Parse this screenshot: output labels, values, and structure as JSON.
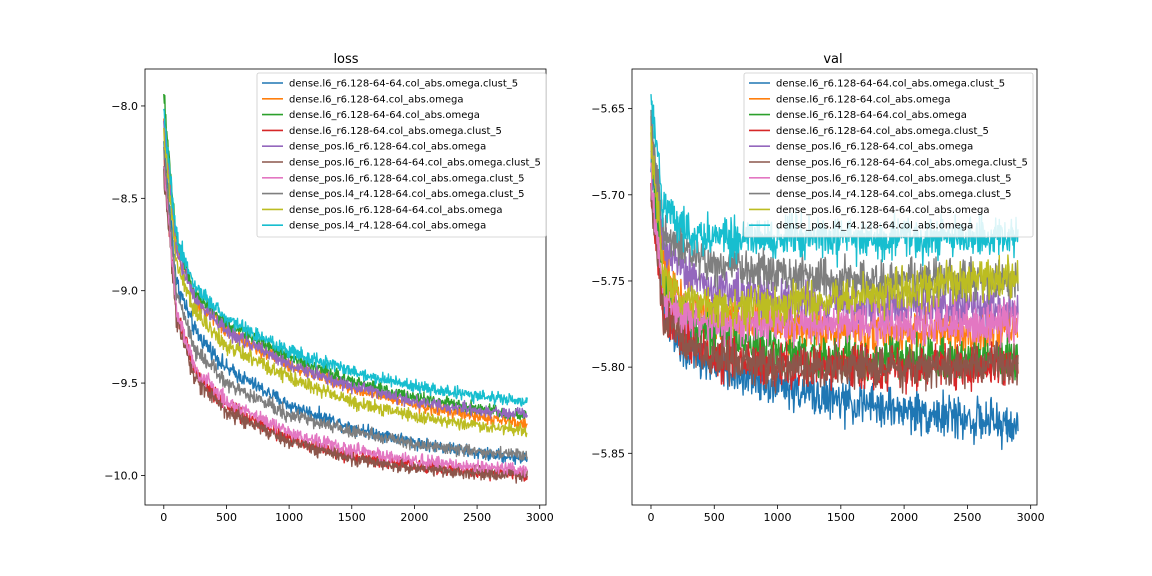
{
  "chart_data": [
    {
      "type": "line",
      "title": "loss",
      "xlabel": "",
      "ylabel": "",
      "xlim": [
        -150,
        3050
      ],
      "ylim": [
        -10.16,
        -7.8
      ],
      "xticks": [
        0,
        500,
        1000,
        1500,
        2000,
        2500,
        3000
      ],
      "xtick_labels": [
        "0",
        "500",
        "1000",
        "1500",
        "2000",
        "2500",
        "3000"
      ],
      "yticks": [
        -8.0,
        -8.5,
        -9.0,
        -9.5,
        -10.0
      ],
      "ytick_labels": [
        "−8.0",
        "−8.5",
        "−9.0",
        "−9.5",
        "−10.0"
      ],
      "grid": false,
      "legend": "top-right",
      "series": [
        {
          "name": "dense.l6_r6.128-64-64.col_abs.omega.clust_5",
          "color": "#1f77b4",
          "x": [
            0,
            100,
            250,
            500,
            1000,
            1500,
            2000,
            2500,
            2900
          ],
          "y": [
            -8.2,
            -8.95,
            -9.22,
            -9.42,
            -9.62,
            -9.74,
            -9.82,
            -9.88,
            -9.91
          ]
        },
        {
          "name": "dense.l6_r6.128-64.col_abs.omega",
          "color": "#ff7f0e",
          "x": [
            0,
            100,
            250,
            500,
            1000,
            1500,
            2000,
            2500,
            2900
          ],
          "y": [
            -8.08,
            -8.75,
            -9.05,
            -9.22,
            -9.4,
            -9.53,
            -9.62,
            -9.68,
            -9.72
          ]
        },
        {
          "name": "dense.l6_r6.128-64-64.col_abs.omega",
          "color": "#2ca02c",
          "x": [
            0,
            100,
            250,
            500,
            1000,
            1500,
            2000,
            2500,
            2900
          ],
          "y": [
            -7.95,
            -8.72,
            -9.02,
            -9.18,
            -9.36,
            -9.49,
            -9.58,
            -9.64,
            -9.68
          ]
        },
        {
          "name": "dense.l6_r6.128-64.col_abs.omega.clust_5",
          "color": "#d62728",
          "x": [
            0,
            100,
            250,
            500,
            1000,
            1500,
            2000,
            2500,
            2900
          ],
          "y": [
            -8.3,
            -9.1,
            -9.45,
            -9.63,
            -9.8,
            -9.9,
            -9.95,
            -9.98,
            -10.0
          ]
        },
        {
          "name": "dense_pos.l6_r6.128-64.col_abs.omega",
          "color": "#9467bd",
          "x": [
            0,
            100,
            250,
            500,
            1000,
            1500,
            2000,
            2500,
            2900
          ],
          "y": [
            -8.1,
            -8.8,
            -9.05,
            -9.22,
            -9.4,
            -9.52,
            -9.6,
            -9.65,
            -9.67
          ]
        },
        {
          "name": "dense_pos.l6_r6.128-64-64.col_abs.omega.clust_5",
          "color": "#8c564b",
          "x": [
            0,
            100,
            250,
            500,
            1000,
            1500,
            2000,
            2500,
            2900
          ],
          "y": [
            -8.35,
            -9.15,
            -9.48,
            -9.65,
            -9.82,
            -9.91,
            -9.96,
            -9.99,
            -10.0
          ]
        },
        {
          "name": "dense_pos.l6_r6.128-64.col_abs.omega.clust_5",
          "color": "#e377c2",
          "x": [
            0,
            100,
            250,
            500,
            1000,
            1500,
            2000,
            2500,
            2900
          ],
          "y": [
            -8.3,
            -9.1,
            -9.42,
            -9.6,
            -9.77,
            -9.86,
            -9.92,
            -9.95,
            -9.97
          ]
        },
        {
          "name": "dense_pos.l4_r4.128-64.col_abs.omega.clust_5",
          "color": "#7f7f7f",
          "x": [
            0,
            100,
            250,
            500,
            1000,
            1500,
            2000,
            2500,
            2900
          ],
          "y": [
            -8.25,
            -9.0,
            -9.32,
            -9.5,
            -9.67,
            -9.76,
            -9.83,
            -9.87,
            -9.89
          ]
        },
        {
          "name": "dense_pos.l6_r6.128-64-64.col_abs.omega",
          "color": "#bcbd22",
          "x": [
            0,
            100,
            250,
            500,
            1000,
            1500,
            2000,
            2500,
            2900
          ],
          "y": [
            -8.15,
            -8.85,
            -9.12,
            -9.3,
            -9.47,
            -9.6,
            -9.68,
            -9.73,
            -9.76
          ]
        },
        {
          "name": "dense_pos.l4_r4.128-64.col_abs.omega",
          "color": "#17becf",
          "x": [
            0,
            100,
            250,
            500,
            1000,
            1500,
            2000,
            2500,
            2900
          ],
          "y": [
            -8.05,
            -8.7,
            -8.98,
            -9.15,
            -9.33,
            -9.44,
            -9.52,
            -9.57,
            -9.6
          ]
        }
      ]
    },
    {
      "type": "line",
      "title": "val",
      "xlabel": "",
      "ylabel": "",
      "xlim": [
        -150,
        3050
      ],
      "ylim": [
        -5.88,
        -5.627
      ],
      "xticks": [
        0,
        500,
        1000,
        1500,
        2000,
        2500,
        3000
      ],
      "xtick_labels": [
        "0",
        "500",
        "1000",
        "1500",
        "2000",
        "2500",
        "3000"
      ],
      "yticks": [
        -5.65,
        -5.7,
        -5.75,
        -5.8,
        -5.85
      ],
      "ytick_labels": [
        "−5.65",
        "−5.70",
        "−5.75",
        "−5.80",
        "−5.85"
      ],
      "grid": false,
      "legend": "top-right",
      "series": [
        {
          "name": "dense.l6_r6.128-64-64.col_abs.omega.clust_5",
          "color": "#1f77b4",
          "x": [
            0,
            100,
            250,
            500,
            1000,
            1500,
            2000,
            2500,
            2900
          ],
          "y": [
            -5.68,
            -5.77,
            -5.79,
            -5.8,
            -5.81,
            -5.82,
            -5.825,
            -5.83,
            -5.835
          ]
        },
        {
          "name": "dense.l6_r6.128-64.col_abs.omega",
          "color": "#ff7f0e",
          "x": [
            0,
            100,
            250,
            500,
            1000,
            1500,
            2000,
            2500,
            2900
          ],
          "y": [
            -5.66,
            -5.74,
            -5.76,
            -5.77,
            -5.775,
            -5.78,
            -5.78,
            -5.78,
            -5.78
          ]
        },
        {
          "name": "dense.l6_r6.128-64-64.col_abs.omega",
          "color": "#2ca02c",
          "x": [
            0,
            100,
            250,
            500,
            1000,
            1500,
            2000,
            2500,
            2900
          ],
          "y": [
            -5.67,
            -5.75,
            -5.77,
            -5.78,
            -5.79,
            -5.795,
            -5.795,
            -5.795,
            -5.795
          ]
        },
        {
          "name": "dense.l6_r6.128-64.col_abs.omega.clust_5",
          "color": "#d62728",
          "x": [
            0,
            100,
            250,
            500,
            1000,
            1500,
            2000,
            2500,
            2900
          ],
          "y": [
            -5.7,
            -5.77,
            -5.785,
            -5.795,
            -5.8,
            -5.8,
            -5.8,
            -5.8,
            -5.8
          ]
        },
        {
          "name": "dense_pos.l6_r6.128-64.col_abs.omega",
          "color": "#9467bd",
          "x": [
            0,
            100,
            250,
            500,
            1000,
            1500,
            2000,
            2500,
            2900
          ],
          "y": [
            -5.67,
            -5.73,
            -5.745,
            -5.755,
            -5.76,
            -5.765,
            -5.765,
            -5.765,
            -5.765
          ]
        },
        {
          "name": "dense_pos.l6_r6.128-64-64.col_abs.omega.clust_5",
          "color": "#8c564b",
          "x": [
            0,
            100,
            250,
            500,
            1000,
            1500,
            2000,
            2500,
            2900
          ],
          "y": [
            -5.7,
            -5.77,
            -5.785,
            -5.795,
            -5.8,
            -5.8,
            -5.8,
            -5.8,
            -5.8
          ]
        },
        {
          "name": "dense_pos.l6_r6.128-64.col_abs.omega.clust_5",
          "color": "#e377c2",
          "x": [
            0,
            100,
            250,
            500,
            1000,
            1500,
            2000,
            2500,
            2900
          ],
          "y": [
            -5.69,
            -5.76,
            -5.77,
            -5.775,
            -5.775,
            -5.775,
            -5.775,
            -5.775,
            -5.775
          ]
        },
        {
          "name": "dense_pos.l4_r4.128-64.col_abs.omega.clust_5",
          "color": "#7f7f7f",
          "x": [
            0,
            100,
            250,
            500,
            1000,
            1500,
            2000,
            2500,
            2900
          ],
          "y": [
            -5.66,
            -5.72,
            -5.73,
            -5.74,
            -5.745,
            -5.75,
            -5.75,
            -5.75,
            -5.75
          ]
        },
        {
          "name": "dense_pos.l6_r6.128-64-64.col_abs.omega",
          "color": "#bcbd22",
          "x": [
            0,
            100,
            250,
            500,
            1000,
            1500,
            2000,
            2500,
            2900
          ],
          "y": [
            -5.67,
            -5.75,
            -5.76,
            -5.765,
            -5.765,
            -5.76,
            -5.755,
            -5.75,
            -5.745
          ]
        },
        {
          "name": "dense_pos.l4_r4.128-64.col_abs.omega",
          "color": "#17becf",
          "x": [
            0,
            100,
            250,
            500,
            1000,
            1500,
            2000,
            2500,
            2900
          ],
          "y": [
            -5.64,
            -5.71,
            -5.72,
            -5.725,
            -5.725,
            -5.725,
            -5.725,
            -5.725,
            -5.725
          ]
        }
      ]
    }
  ]
}
